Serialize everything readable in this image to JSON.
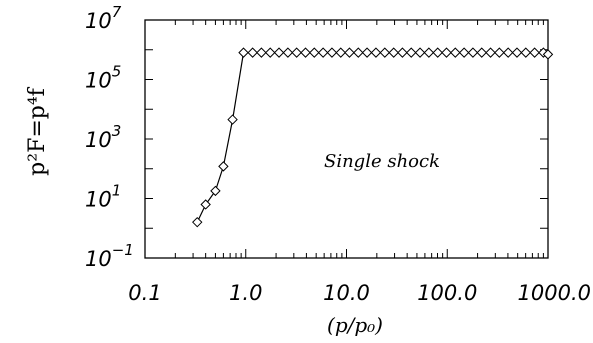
{
  "chart_data": {
    "type": "line",
    "xscale": "log",
    "yscale": "log",
    "xlim": [
      0.1,
      1000.0
    ],
    "ylim": [
      0.1,
      10000000
    ],
    "xlabel": "(p/p₀)",
    "ylabel": "p²F=p⁴f",
    "annotation": "Single shock",
    "xticks": [
      {
        "value": 0.1,
        "label": "0.1"
      },
      {
        "value": 1.0,
        "label": "1.0"
      },
      {
        "value": 10.0,
        "label": "10.0"
      },
      {
        "value": 100.0,
        "label": "100.0"
      },
      {
        "value": 1000.0,
        "label": "1000.0"
      }
    ],
    "yticks": [
      {
        "value": 0.1,
        "base": "10",
        "exp": "−1"
      },
      {
        "value": 10,
        "base": "10",
        "exp": "1"
      },
      {
        "value": 1000,
        "base": "10",
        "exp": "3"
      },
      {
        "value": 100000,
        "base": "10",
        "exp": "5"
      },
      {
        "value": 10000000,
        "base": "10",
        "exp": "7"
      }
    ],
    "grid": false,
    "marker": "diamond",
    "series": [
      {
        "x": [
          0.33,
          0.4,
          0.5,
          0.6,
          0.74,
          0.95,
          1.17,
          1.43,
          1.75,
          2.14,
          2.62,
          3.2,
          3.92,
          4.79,
          5.86,
          7.17,
          8.77,
          10.7,
          13.1,
          16.0,
          19.6,
          24.0,
          29.4,
          35.9,
          43.9,
          53.7,
          65.7,
          80.4,
          98.3,
          120.2,
          147.0,
          179.8,
          219.9,
          269.0,
          329.0,
          402.4,
          492.2,
          602.0,
          736.4,
          900.7,
          1000.0
        ],
        "y": [
          1.6,
          6.3,
          18,
          120,
          4500,
          800000,
          800000,
          800000,
          800000,
          800000,
          800000,
          800000,
          800000,
          800000,
          800000,
          800000,
          800000,
          800000,
          800000,
          800000,
          800000,
          800000,
          800000,
          800000,
          800000,
          800000,
          800000,
          800000,
          800000,
          800000,
          800000,
          800000,
          800000,
          800000,
          800000,
          800000,
          800000,
          800000,
          800000,
          800000,
          700000
        ]
      }
    ]
  }
}
